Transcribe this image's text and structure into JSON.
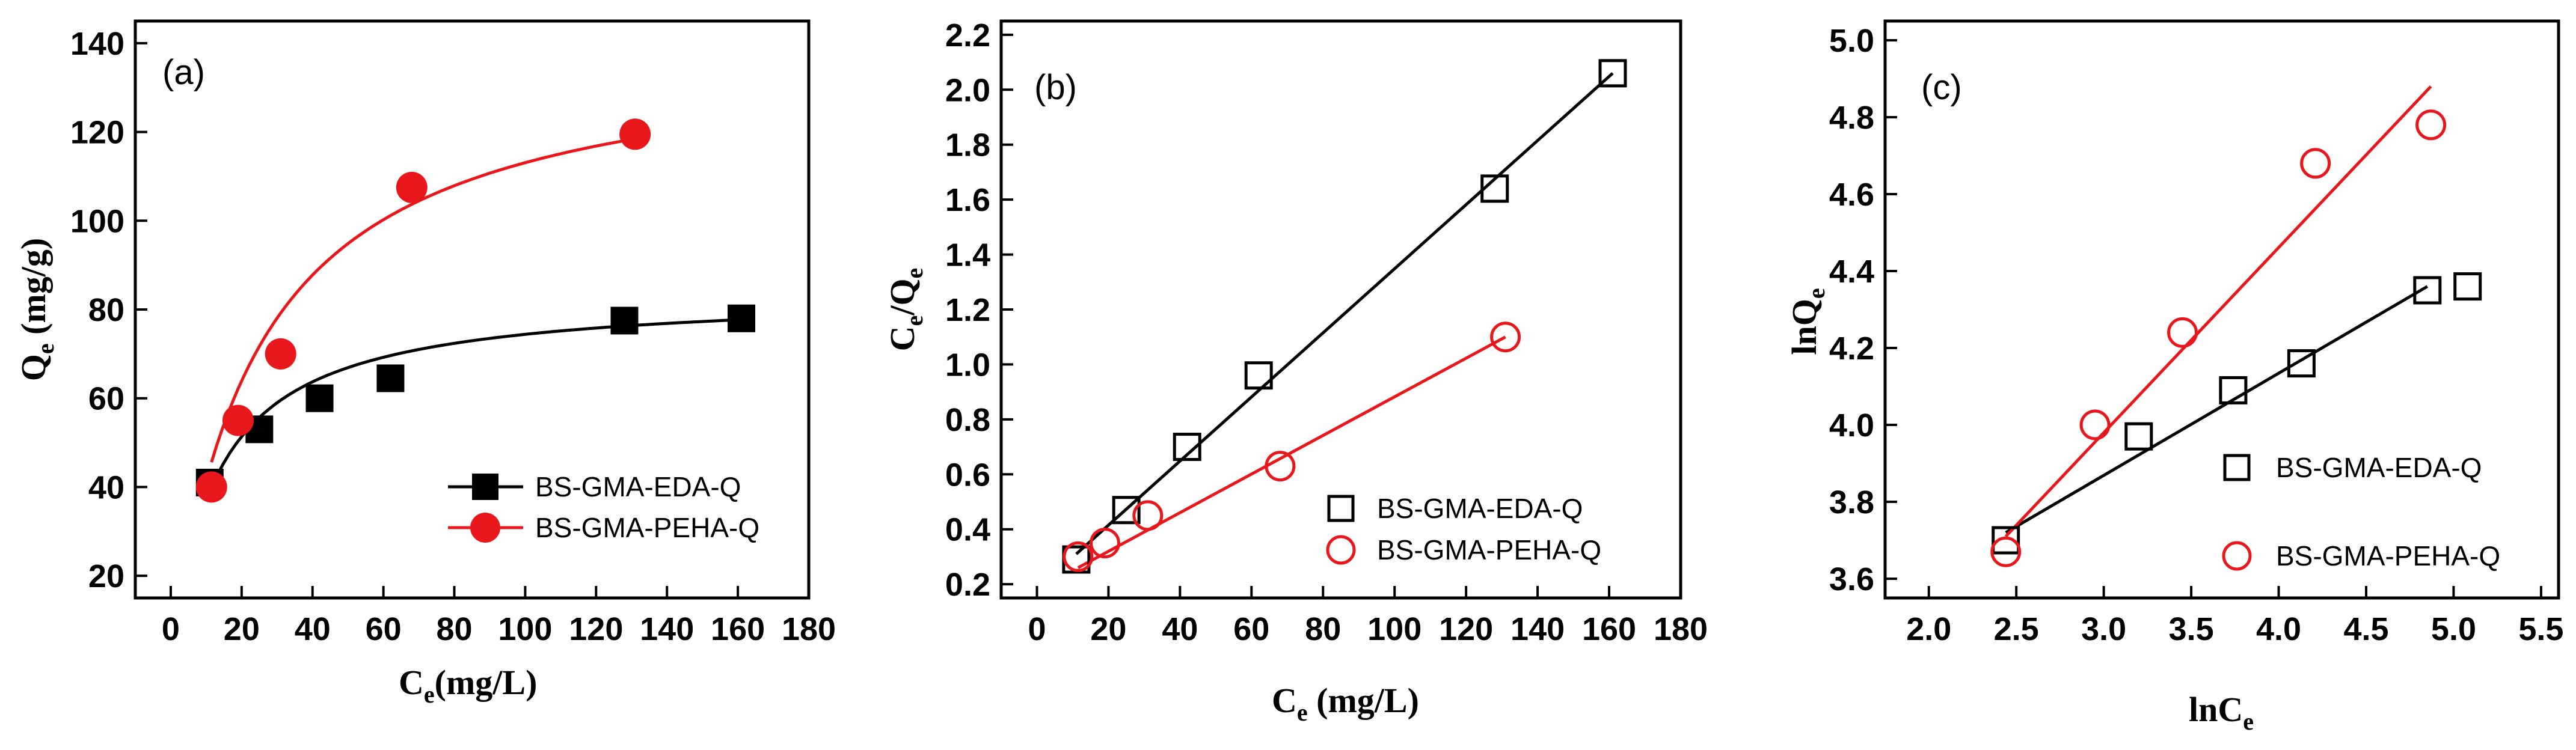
{
  "colors": {
    "eda": "#000000",
    "peha": "#e8171c"
  },
  "chart_data": [
    {
      "type": "scatter",
      "panel_label": "(a)",
      "xlabel": "Ce(mg/L)",
      "ylabel": "Qe (mg/g)",
      "xlim": [
        -10,
        180
      ],
      "ylim": [
        15,
        145
      ],
      "xticks": [
        "0",
        "20",
        "40",
        "60",
        "80",
        "100",
        "120",
        "140",
        "160",
        "180"
      ],
      "yticks": [
        "20",
        "40",
        "60",
        "80",
        "100",
        "120",
        "140"
      ],
      "legend_position": "lower-right",
      "series": [
        {
          "name": "BS-GMA-EDA-Q",
          "marker": "filled-square",
          "color_key": "eda",
          "x": [
            11,
            25,
            42,
            62,
            128,
            161
          ],
          "y": [
            41,
            53,
            60,
            64.5,
            77.5,
            78
          ],
          "fit": {
            "type": "langmuir",
            "qmax": 83.8,
            "kl": 0.0792
          }
        },
        {
          "name": "BS-GMA-PEHA-Q",
          "marker": "filled-circle",
          "color_key": "peha",
          "x": [
            11.5,
            19,
            31,
            68,
            131
          ],
          "y": [
            40,
            55,
            70,
            107.5,
            119.5
          ],
          "fit": {
            "type": "langmuir",
            "qmax": 140,
            "kl": 0.042
          }
        }
      ]
    },
    {
      "type": "scatter",
      "panel_label": "(b)",
      "xlabel": "Ce (mg/L)",
      "ylabel": "Ce/Qe",
      "xlim": [
        -10,
        180
      ],
      "ylim": [
        0.15,
        2.25
      ],
      "xticks": [
        "0",
        "20",
        "40",
        "60",
        "80",
        "100",
        "120",
        "140",
        "160",
        "180"
      ],
      "yticks": [
        "0.2",
        "0.4",
        "0.6",
        "0.8",
        "1.0",
        "1.2",
        "1.4",
        "1.6",
        "1.8",
        "2.0",
        "2.2"
      ],
      "legend_position": "lower-right",
      "series": [
        {
          "name": "BS-GMA-EDA-Q",
          "marker": "open-square",
          "color_key": "eda",
          "x": [
            11,
            25,
            42,
            62,
            128,
            161
          ],
          "y": [
            0.29,
            0.47,
            0.7,
            0.96,
            1.64,
            2.06
          ],
          "fit": {
            "type": "line",
            "x0": 11,
            "y0": 0.31,
            "x1": 161,
            "y1": 2.06
          }
        },
        {
          "name": "BS-GMA-PEHA-Q",
          "marker": "open-circle",
          "color_key": "peha",
          "x": [
            11.5,
            19,
            31,
            68,
            131
          ],
          "y": [
            0.3,
            0.35,
            0.45,
            0.63,
            1.1
          ],
          "fit": {
            "type": "line",
            "x0": 11.5,
            "y0": 0.26,
            "x1": 131,
            "y1": 1.1
          }
        }
      ]
    },
    {
      "type": "scatter",
      "panel_label": "(c)",
      "xlabel": "lnCe",
      "ylabel": "lnQe",
      "xlim": [
        1.75,
        5.6
      ],
      "ylim": [
        3.55,
        5.05
      ],
      "xticks": [
        "2.0",
        "2.5",
        "3.0",
        "3.5",
        "4.0",
        "4.5",
        "5.0",
        "5.5"
      ],
      "yticks": [
        "3.6",
        "3.8",
        "4.0",
        "4.2",
        "4.4",
        "4.6",
        "4.8",
        "5.0"
      ],
      "legend_position": "lower-right",
      "series": [
        {
          "name": "BS-GMA-EDA-Q",
          "marker": "open-square",
          "color_key": "eda",
          "x": [
            2.44,
            3.2,
            3.74,
            4.13,
            4.85,
            5.08
          ],
          "y": [
            3.7,
            3.97,
            4.09,
            4.16,
            4.35,
            4.36
          ],
          "fit": {
            "type": "line",
            "x0": 2.44,
            "y0": 3.72,
            "x1": 4.85,
            "y1": 4.36
          }
        },
        {
          "name": "BS-GMA-PEHA-Q",
          "marker": "open-circle",
          "color_key": "peha",
          "x": [
            2.44,
            2.95,
            3.45,
            4.21,
            4.87
          ],
          "y": [
            3.67,
            4.0,
            4.24,
            4.68,
            4.78
          ],
          "fit": {
            "type": "line",
            "x0": 2.44,
            "y0": 3.71,
            "x1": 4.87,
            "y1": 4.88
          }
        }
      ]
    }
  ]
}
